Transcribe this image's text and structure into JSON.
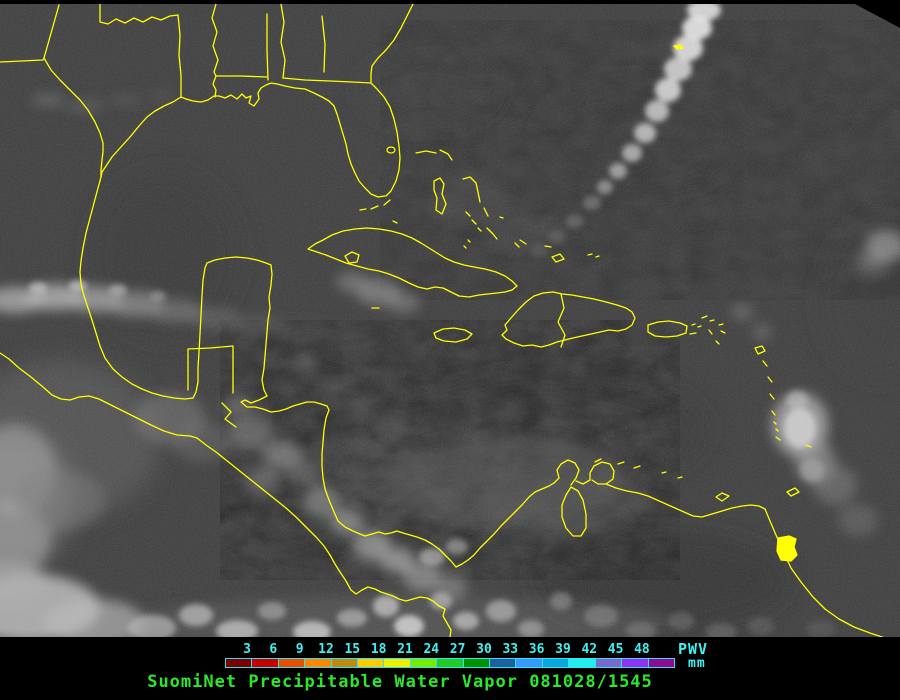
{
  "map": {
    "description": "grayscale satellite water-vapor image of Gulf of Mexico and Caribbean",
    "coastline_color": "#ffff00",
    "base_color": "#3f3f3f",
    "frame_color": "#000000"
  },
  "colorbar": {
    "tick_values": [
      "3",
      "6",
      "9",
      "12",
      "15",
      "18",
      "21",
      "24",
      "27",
      "30",
      "33",
      "36",
      "39",
      "42",
      "45",
      "48"
    ],
    "unit_label": "PWV",
    "unit_sublabel": "mm",
    "tick_color": "#3df2f2",
    "border_color": "#35e0f0",
    "segment_colors": [
      "#7a0000",
      "#c40000",
      "#e85000",
      "#ff8800",
      "#c08a10",
      "#ffcc00",
      "#eeee00",
      "#77ee00",
      "#22cc22",
      "#009000",
      "#1e5f9e",
      "#3898fc",
      "#0aa8dc",
      "#22eeee",
      "#7a6ace",
      "#9030f0",
      "#8c0c94"
    ]
  },
  "caption": {
    "text": "SuomiNet Precipitable Water Vapor 081028/1545",
    "color": "#2ae82a"
  }
}
